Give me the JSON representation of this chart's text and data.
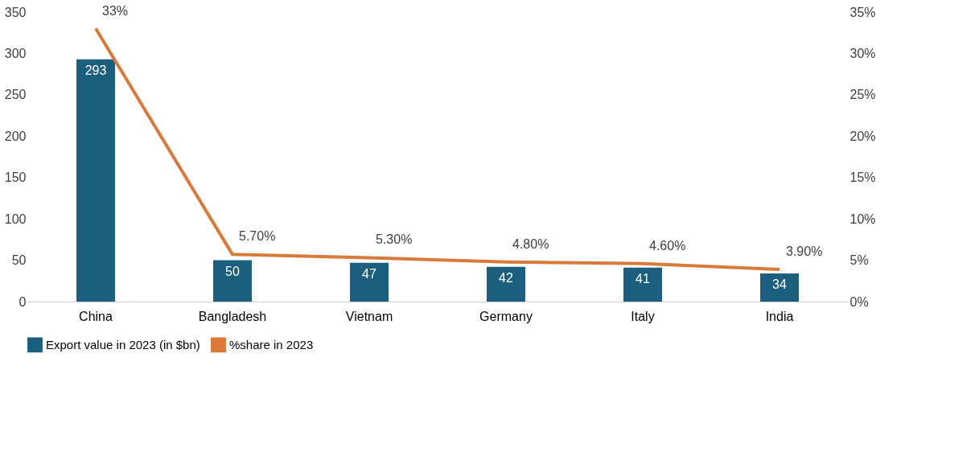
{
  "chart_data": {
    "type": "bar",
    "categories": [
      "China",
      "Bangladesh",
      "Vietnam",
      "Germany",
      "Italy",
      "India"
    ],
    "series": [
      {
        "name": "Export value in 2023 (in $bn)",
        "color": "#1b5e7d",
        "values": [
          293,
          50,
          47,
          42,
          41,
          34
        ]
      },
      {
        "name": "%share in 2023",
        "type": "line",
        "axis": "y2",
        "color": "#d9793a",
        "values": [
          33,
          5.7,
          5.3,
          4.8,
          4.6,
          3.9
        ],
        "value_labels": [
          "33%",
          "5.70%",
          "5.30%",
          "4.80%",
          "4.60%",
          "3.90%"
        ]
      }
    ],
    "ylim": [
      0,
      350
    ],
    "yticks": [
      0,
      50,
      100,
      150,
      200,
      250,
      300,
      350
    ],
    "y2lim": [
      0,
      35
    ],
    "y2ticks": [
      {
        "value": 0,
        "label": "0%"
      },
      {
        "value": 5,
        "label": "5%"
      },
      {
        "value": 10,
        "label": "10%"
      },
      {
        "value": 15,
        "label": "15%"
      },
      {
        "value": 20,
        "label": "20%"
      },
      {
        "value": 25,
        "label": "25%"
      },
      {
        "value": 30,
        "label": "30%"
      },
      {
        "value": 35,
        "label": "35%"
      }
    ],
    "data_labels": true,
    "grid": false,
    "legend": "bottom"
  }
}
